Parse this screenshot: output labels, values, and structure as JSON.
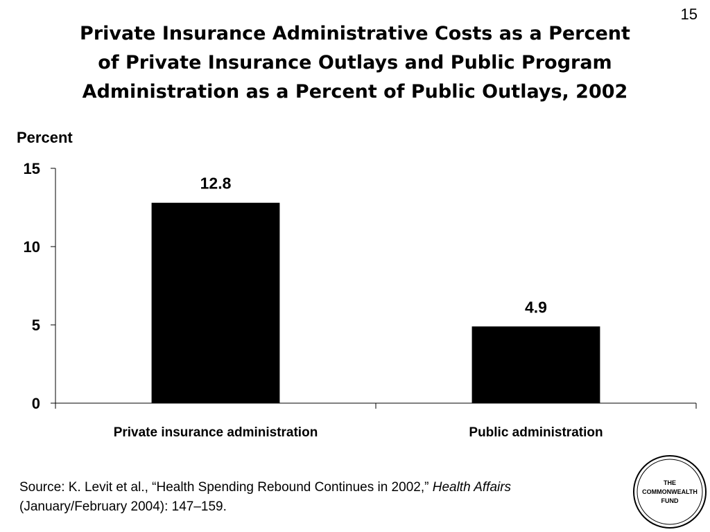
{
  "slide_number": "15",
  "title": {
    "line1": "Private Insurance Administrative Costs as a Percent",
    "line2": "of Private Insurance Outlays and Public Program",
    "line3": "Administration as a Percent of Public Outlays, 2002"
  },
  "chart_data": {
    "type": "bar",
    "categories": [
      "Private insurance administration",
      "Public administration"
    ],
    "values": [
      12.8,
      4.9
    ],
    "data_labels": [
      "12.8",
      "4.9"
    ],
    "ylabel": "Percent",
    "xlabel": "",
    "ylim": [
      0,
      15
    ],
    "yticks": [
      0,
      5,
      10,
      15
    ],
    "grid": false,
    "bar_color": "#000000"
  },
  "source": {
    "prefix": "Source: K. Levit et al., “Health Spending Rebound Continues in 2002,” ",
    "journal": "Health Affairs",
    "suffix": "(January/February 2004): 147–159."
  },
  "logo": {
    "line1": "THE",
    "line2": "COMMONWEALTH",
    "line3": "FUND"
  }
}
